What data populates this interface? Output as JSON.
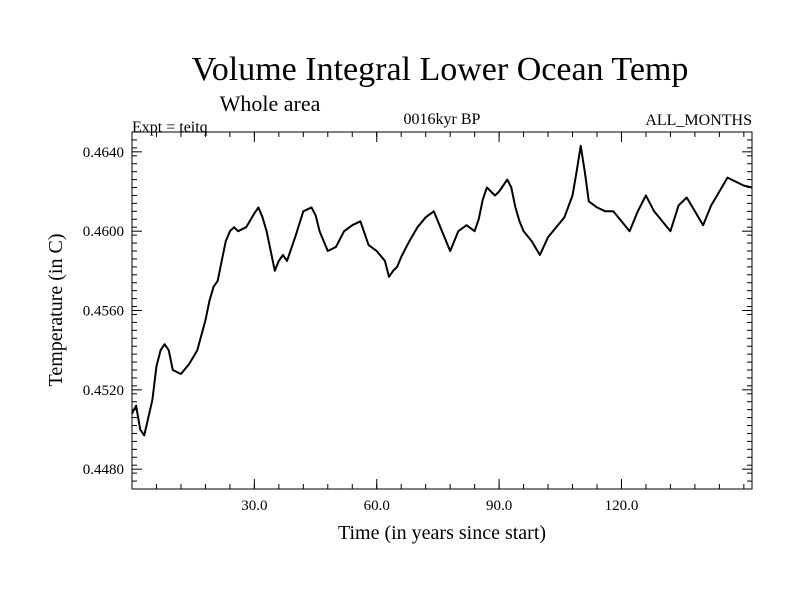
{
  "chart_data": {
    "type": "line",
    "title": "Volume Integral Lower Ocean Temp",
    "subtitle": "Whole area",
    "annotations": {
      "left": "Expt = teitq",
      "center": "0016kyr BP",
      "right": "ALL_MONTHS"
    },
    "xlabel": "Time (in years since start)",
    "ylabel": "Temperature (in C)",
    "xlim": [
      0,
      152
    ],
    "ylim": [
      0.447,
      0.465
    ],
    "x_ticks": [
      30,
      60,
      90,
      120
    ],
    "x_tick_labels": [
      "30.0",
      "60.0",
      "90.0",
      "120.0"
    ],
    "y_ticks": [
      0.448,
      0.452,
      0.456,
      0.46,
      0.464
    ],
    "y_tick_labels": [
      "0.4480",
      "0.4520",
      "0.4560",
      "0.4600",
      "0.4640"
    ],
    "grid": false,
    "series": [
      {
        "name": "Volume Integral Lower Ocean Temp",
        "color": "#000000",
        "x": [
          0,
          1,
          2,
          3,
          4,
          5,
          6,
          7,
          8,
          9,
          10,
          12,
          14,
          16,
          18,
          19,
          20,
          21,
          22,
          23,
          24,
          25,
          26,
          28,
          30,
          31,
          32,
          33,
          34,
          35,
          36,
          37,
          38,
          40,
          42,
          44,
          45,
          46,
          47,
          48,
          50,
          52,
          54,
          56,
          58,
          60,
          62,
          63,
          64,
          65,
          66,
          68,
          70,
          72,
          74,
          76,
          78,
          80,
          82,
          84,
          85,
          86,
          87,
          88,
          89,
          90,
          92,
          93,
          94,
          95,
          96,
          98,
          100,
          102,
          104,
          106,
          108,
          109,
          110,
          111,
          112,
          114,
          116,
          118,
          120,
          122,
          124,
          126,
          128,
          130,
          132,
          134,
          136,
          138,
          140,
          142,
          144,
          146,
          148,
          150,
          152
        ],
        "values": [
          0.4508,
          0.4512,
          0.45,
          0.4497,
          0.4506,
          0.4515,
          0.4532,
          0.454,
          0.4543,
          0.454,
          0.453,
          0.4528,
          0.4533,
          0.454,
          0.4555,
          0.4565,
          0.4572,
          0.4575,
          0.4585,
          0.4595,
          0.46,
          0.4602,
          0.46,
          0.4602,
          0.4609,
          0.4612,
          0.4607,
          0.46,
          0.459,
          0.458,
          0.4585,
          0.4588,
          0.4585,
          0.4597,
          0.461,
          0.4612,
          0.4608,
          0.46,
          0.4595,
          0.459,
          0.4592,
          0.46,
          0.4603,
          0.4605,
          0.4593,
          0.459,
          0.4585,
          0.4577,
          0.458,
          0.4582,
          0.4587,
          0.4595,
          0.4602,
          0.4607,
          0.461,
          0.46,
          0.459,
          0.46,
          0.4603,
          0.46,
          0.4606,
          0.4616,
          0.4622,
          0.462,
          0.4618,
          0.462,
          0.4626,
          0.4622,
          0.4612,
          0.4605,
          0.46,
          0.4595,
          0.4588,
          0.4597,
          0.4602,
          0.4607,
          0.4618,
          0.463,
          0.4643,
          0.463,
          0.4615,
          0.4612,
          0.461,
          0.461,
          0.4605,
          0.46,
          0.461,
          0.4618,
          0.461,
          0.4605,
          0.46,
          0.4613,
          0.4617,
          0.461,
          0.4603,
          0.4613,
          0.462,
          0.4627,
          0.4625,
          0.4623,
          0.4622
        ]
      }
    ]
  }
}
